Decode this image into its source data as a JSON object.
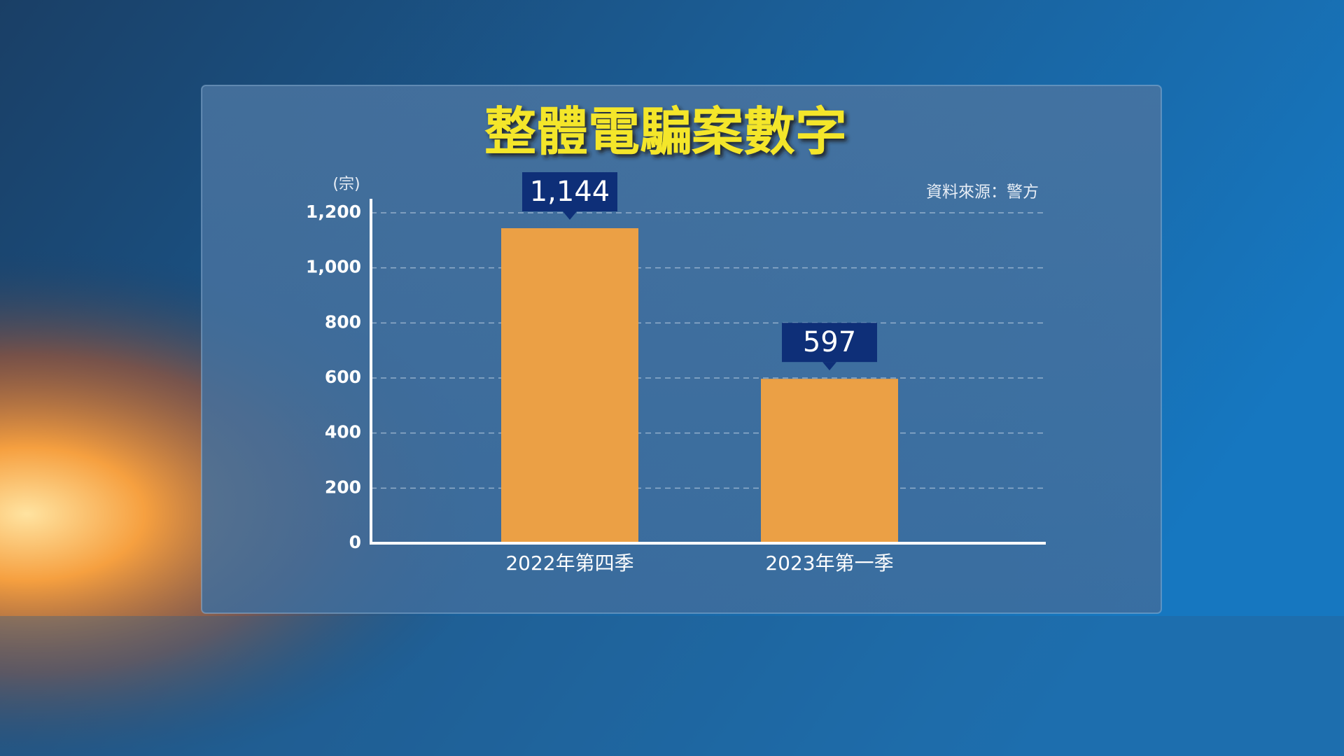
{
  "chart_data": {
    "type": "bar",
    "title": "整體電騙案數字",
    "y_unit": "(宗)",
    "source": "資料來源：警方",
    "categories": [
      "2022年第四季",
      "2023年第一季"
    ],
    "values": [
      1144,
      597
    ],
    "value_labels": [
      "1,144",
      "597"
    ],
    "color": "#eba045",
    "ylim": [
      0,
      1200
    ],
    "yticks": [
      0,
      200,
      400,
      600,
      800,
      {
        "value": 1000,
        "label": "1,000"
      },
      {
        "value": 1200,
        "label": "1,200"
      }
    ],
    "grid": true
  }
}
